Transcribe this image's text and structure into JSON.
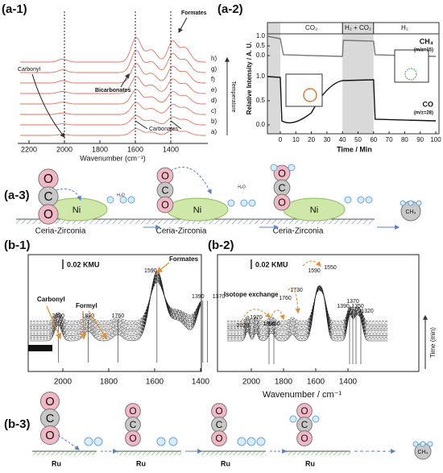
{
  "a1": {
    "label": "(a-1)",
    "xticks": [
      "2200",
      "2000",
      "1800",
      "1600",
      "1400"
    ],
    "xlabel": "Wavenumber (cm⁻¹)",
    "traces": [
      "a)",
      "b)",
      "c)",
      "d)",
      "e)",
      "f)",
      "g)",
      "h)"
    ],
    "temperature": "Temperature",
    "carbonyl": "Carbonyl",
    "bicarbonates": "Bicarbonates",
    "carbonates": "Carbonates",
    "formates": "Formates"
  },
  "a2": {
    "label": "(a-2)",
    "phases": [
      "CO₂",
      "H₂ + CO₂",
      "H₂"
    ],
    "ylabel": "Relative Intensity / A. U.",
    "yticks_top": [
      "1.0",
      "0.5",
      "0.0"
    ],
    "yticks_bottom": [
      "1.0",
      "0.5",
      "0.0"
    ],
    "xticks": [
      "0",
      "10",
      "20",
      "30",
      "40",
      "50",
      "60",
      "70",
      "80",
      "90",
      "100"
    ],
    "xlabel": "Time / Min",
    "ch4": "CH₄",
    "ch4_mz": "(m/z=15)",
    "co": "CO",
    "co_mz": "(m/z=28)"
  },
  "a3": {
    "label": "(a-3)",
    "support": "Ceria-Zirconia",
    "metal": "Ni",
    "o": "O",
    "c": "C",
    "water": "H₂O",
    "product": "CH₄"
  },
  "b1": {
    "label": "(b-1)",
    "scale": "0.02 KMU",
    "formates": "Formates",
    "carbonyl": "Carbonyl",
    "formyl": "Formyl",
    "peaks": [
      "2020",
      "1890",
      "1760",
      "1590",
      "1390",
      "1370"
    ],
    "xticks": [
      "2000",
      "1800",
      "1600",
      "1400"
    ]
  },
  "b2": {
    "label": "(b-2)",
    "scale": "0.02 KMU",
    "isotope": "Isotope exchange",
    "peaks": [
      "2023",
      "1970",
      "1890",
      "1860",
      "1760",
      "1730",
      "1590",
      "1550",
      "1390",
      "1370",
      "1350",
      "1320"
    ],
    "xticks": [
      "2000",
      "1800",
      "1600",
      "1400"
    ],
    "time": "Time (min)",
    "xlabel": "Wavenumber / cm⁻¹"
  },
  "b3": {
    "label": "(b-3)",
    "metal": "Ru",
    "o": "O",
    "c": "C",
    "product": "CH₄"
  }
}
